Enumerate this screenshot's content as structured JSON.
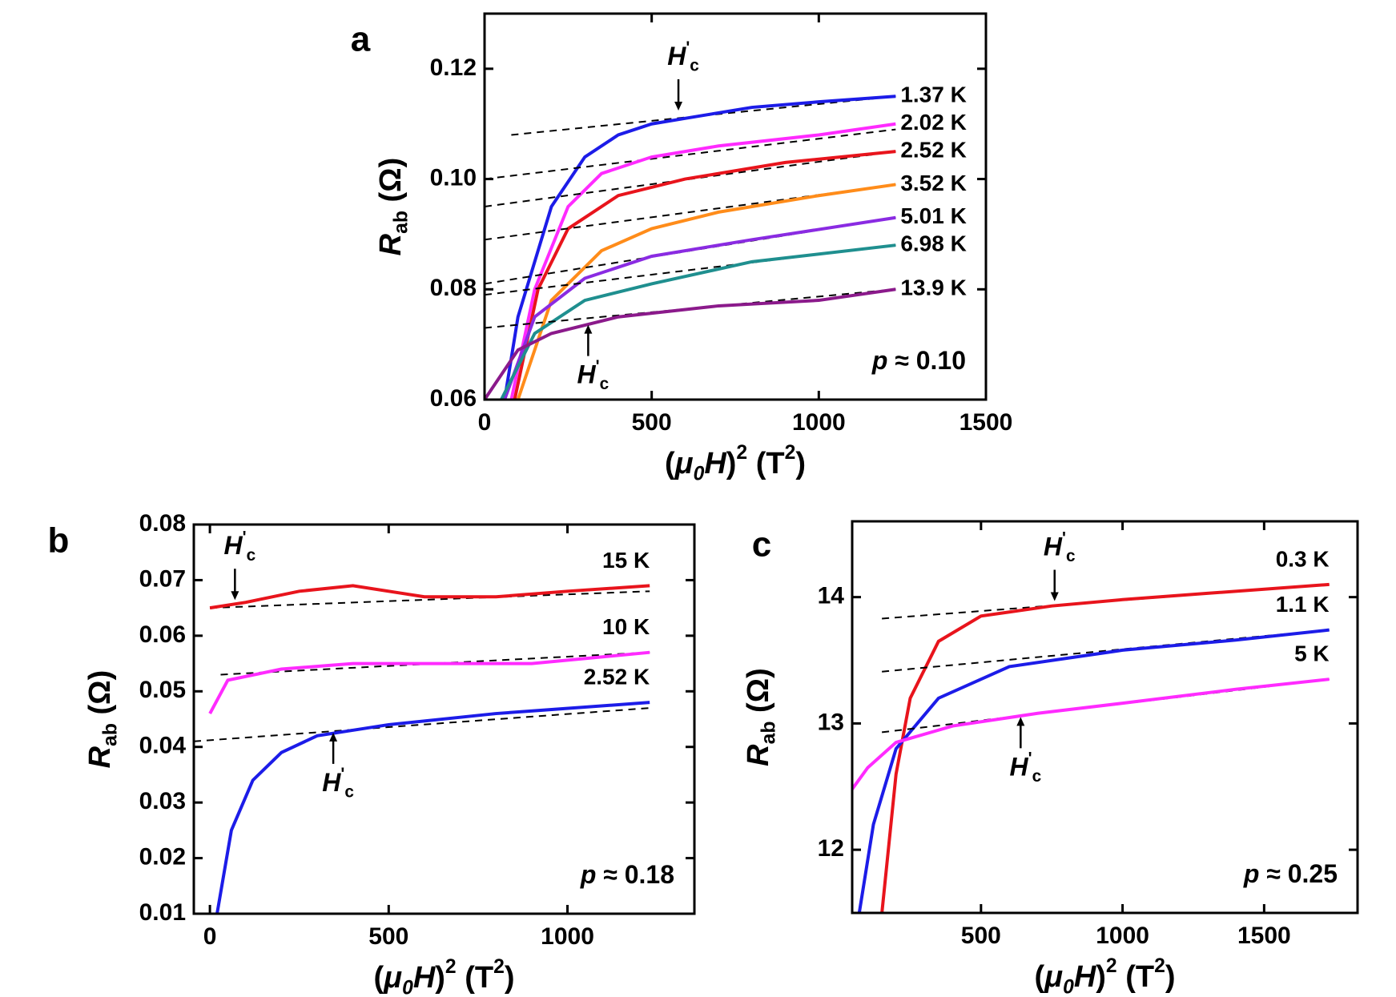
{
  "chart_data": [
    {
      "type": "line",
      "panel": "a",
      "xlim": [
        0,
        1500
      ],
      "ylim": [
        0.06,
        0.13
      ],
      "xticks": [
        0,
        500,
        1000,
        1500
      ],
      "yticks": [
        0.06,
        0.08,
        {
          "value": 0.1,
          "label": "0.10"
        },
        0.12
      ],
      "xlabel": [
        {
          "text": "("
        },
        {
          "text": "μ",
          "style": "italic"
        },
        {
          "text": "0",
          "style": "sub-italic"
        },
        {
          "text": "H",
          "style": "italic"
        },
        {
          "text": ")"
        },
        {
          "text": "2",
          "style": "sup"
        },
        {
          "text": " (T"
        },
        {
          "text": "2",
          "style": "sup"
        },
        {
          "text": ")"
        }
      ],
      "ylabel": [
        {
          "text": "R",
          "style": "italic"
        },
        {
          "text": "ab",
          "style": "sub"
        },
        {
          "text": " (Ω)"
        }
      ],
      "label_position": "right",
      "note": [
        {
          "text": "p",
          "style": "italic"
        },
        {
          "text": " ≈ 0.10"
        }
      ],
      "series": [
        {
          "name": "1.37 K",
          "color": "#1c1ce8",
          "x": [
            60,
            100,
            200,
            300,
            400,
            500,
            600,
            800,
            1000,
            1230
          ],
          "values": [
            0.06,
            0.075,
            0.095,
            0.104,
            0.108,
            0.11,
            0.111,
            0.113,
            0.114,
            0.115
          ],
          "fit": {
            "x": [
              80,
              1230
            ],
            "values": [
              0.108,
              0.115
            ]
          }
        },
        {
          "name": "2.02 K",
          "color": "#ff2bff",
          "x": [
            80,
            150,
            250,
            350,
            500,
            700,
            1000,
            1230
          ],
          "values": [
            0.06,
            0.08,
            0.095,
            0.101,
            0.104,
            0.106,
            0.108,
            0.11
          ],
          "fit": {
            "x": [
              0,
              1230
            ],
            "values": [
              0.1,
              0.109
            ]
          }
        },
        {
          "name": "2.52 K",
          "color": "#e8141c",
          "x": [
            90,
            160,
            250,
            400,
            600,
            900,
            1230
          ],
          "values": [
            0.06,
            0.08,
            0.091,
            0.097,
            0.1,
            0.103,
            0.105
          ],
          "fit": {
            "x": [
              0,
              1230
            ],
            "values": [
              0.095,
              0.105
            ]
          }
        },
        {
          "name": "3.52 K",
          "color": "#ff8c1a",
          "x": [
            100,
            200,
            350,
            500,
            700,
            1000,
            1230
          ],
          "values": [
            0.06,
            0.078,
            0.087,
            0.091,
            0.094,
            0.097,
            0.099
          ],
          "fit": {
            "x": [
              0,
              1230
            ],
            "values": [
              0.089,
              0.099
            ]
          }
        },
        {
          "name": "5.01 K",
          "color": "#8a2be2",
          "x": [
            60,
            150,
            300,
            500,
            800,
            1230
          ],
          "values": [
            0.06,
            0.075,
            0.082,
            0.086,
            0.089,
            0.093
          ],
          "fit": {
            "x": [
              0,
              1230
            ],
            "values": [
              0.081,
              0.093
            ]
          }
        },
        {
          "name": "6.98 K",
          "color": "#1f8f8f",
          "x": [
            50,
            150,
            300,
            500,
            800,
            1230
          ],
          "values": [
            0.06,
            0.072,
            0.078,
            0.081,
            0.085,
            0.088
          ],
          "fit": {
            "x": [
              0,
              1230
            ],
            "values": [
              0.079,
              0.088
            ]
          }
        },
        {
          "name": "13.9 K",
          "color": "#8b1a8b",
          "x": [
            0,
            100,
            200,
            400,
            700,
            1000,
            1230
          ],
          "values": [
            0.06,
            0.069,
            0.072,
            0.075,
            0.077,
            0.078,
            0.08
          ],
          "fit": {
            "x": [
              0,
              1230
            ],
            "values": [
              0.073,
              0.08
            ]
          }
        }
      ],
      "annotations": [
        {
          "parts": [
            {
              "text": "H",
              "style": "italic"
            },
            {
              "text": "'",
              "style": "sup"
            },
            {
              "text": "c",
              "style": "sub"
            }
          ],
          "x": 580,
          "y": 0.112,
          "direction": "down"
        },
        {
          "parts": [
            {
              "text": "H",
              "style": "italic"
            },
            {
              "text": "'",
              "style": "sup"
            },
            {
              "text": "c",
              "style": "sub"
            }
          ],
          "x": 310,
          "y": 0.074,
          "direction": "up"
        }
      ]
    },
    {
      "type": "line",
      "panel": "b",
      "xlim": [
        -45,
        1355
      ],
      "ylim": [
        0.01,
        0.08
      ],
      "xticks": [
        0,
        500,
        1000
      ],
      "yticks": [
        0.01,
        0.02,
        0.03,
        0.04,
        0.05,
        0.06,
        0.07,
        0.08
      ],
      "xlabel": [
        {
          "text": "("
        },
        {
          "text": "μ",
          "style": "italic"
        },
        {
          "text": "0",
          "style": "sub-italic"
        },
        {
          "text": "H",
          "style": "italic"
        },
        {
          "text": ")"
        },
        {
          "text": "2",
          "style": "sup"
        },
        {
          "text": " (T"
        },
        {
          "text": "2",
          "style": "sup"
        },
        {
          "text": ")"
        }
      ],
      "ylabel": [
        {
          "text": "R",
          "style": "italic"
        },
        {
          "text": "ab",
          "style": "sub"
        },
        {
          "text": " (Ω)"
        }
      ],
      "label_position": "above",
      "note": [
        {
          "text": "p",
          "style": "italic"
        },
        {
          "text": " ≈ 0.18"
        }
      ],
      "series": [
        {
          "name": "15 K",
          "color": "#e8141c",
          "x": [
            0,
            100,
            250,
            400,
            600,
            800,
            1000,
            1230
          ],
          "values": [
            0.065,
            0.066,
            0.068,
            0.069,
            0.067,
            0.067,
            0.068,
            0.069
          ],
          "fit": {
            "x": [
              0,
              1230
            ],
            "values": [
              0.065,
              0.068
            ]
          }
        },
        {
          "name": "10 K",
          "color": "#ff2bff",
          "x": [
            0,
            50,
            200,
            400,
            600,
            900,
            1230
          ],
          "values": [
            0.046,
            0.052,
            0.054,
            0.055,
            0.055,
            0.055,
            0.057
          ],
          "fit": {
            "x": [
              30,
              1230
            ],
            "values": [
              0.053,
              0.057
            ]
          }
        },
        {
          "name": "2.52 K",
          "color": "#1c1ce8",
          "x": [
            20,
            60,
            120,
            200,
            300,
            500,
            800,
            1230
          ],
          "values": [
            0.01,
            0.025,
            0.034,
            0.039,
            0.042,
            0.044,
            0.046,
            0.048
          ],
          "fit": {
            "x": [
              -45,
              1230
            ],
            "values": [
              0.041,
              0.047
            ]
          }
        }
      ],
      "annotations": [
        {
          "parts": [
            {
              "text": "H",
              "style": "italic"
            },
            {
              "text": "'",
              "style": "sup"
            },
            {
              "text": "c",
              "style": "sub"
            }
          ],
          "x": 70,
          "y": 0.066,
          "direction": "down"
        },
        {
          "parts": [
            {
              "text": "H",
              "style": "italic"
            },
            {
              "text": "'",
              "style": "sup"
            },
            {
              "text": "c",
              "style": "sub"
            }
          ],
          "x": 345,
          "y": 0.043,
          "direction": "up"
        }
      ]
    },
    {
      "type": "line",
      "panel": "c",
      "xlim": [
        45,
        1830
      ],
      "ylim": [
        11.5,
        14.6
      ],
      "xticks": [
        500,
        1000,
        1500
      ],
      "yticks": [
        12,
        13,
        14
      ],
      "xlabel": [
        {
          "text": "("
        },
        {
          "text": "μ",
          "style": "italic"
        },
        {
          "text": "0",
          "style": "sub-italic"
        },
        {
          "text": "H",
          "style": "italic"
        },
        {
          "text": ")"
        },
        {
          "text": "2",
          "style": "sup"
        },
        {
          "text": " (T"
        },
        {
          "text": "2",
          "style": "sup"
        },
        {
          "text": ")"
        }
      ],
      "ylabel": [
        {
          "text": "R",
          "style": "italic"
        },
        {
          "text": "ab",
          "style": "sub"
        },
        {
          "text": " (Ω)"
        }
      ],
      "label_position": "above",
      "note": [
        {
          "text": "p",
          "style": "italic"
        },
        {
          "text": " ≈ 0.25"
        }
      ],
      "series": [
        {
          "name": "0.3 K",
          "color": "#e8141c",
          "x": [
            150,
            200,
            250,
            350,
            500,
            750,
            1000,
            1300,
            1730
          ],
          "values": [
            11.5,
            12.6,
            13.2,
            13.65,
            13.85,
            13.93,
            13.98,
            14.03,
            14.1
          ],
          "fit": {
            "x": [
              150,
              1730
            ],
            "values": [
              13.83,
              14.1
            ]
          }
        },
        {
          "name": "1.1 K",
          "color": "#1c1ce8",
          "x": [
            70,
            120,
            200,
            350,
            600,
            1000,
            1400,
            1730
          ],
          "values": [
            11.5,
            12.2,
            12.8,
            13.2,
            13.45,
            13.58,
            13.66,
            13.74
          ],
          "fit": {
            "x": [
              150,
              1730
            ],
            "values": [
              13.41,
              13.74
            ]
          }
        },
        {
          "name": "5 K",
          "color": "#ff2bff",
          "x": [
            45,
            100,
            200,
            400,
            700,
            1000,
            1400,
            1730
          ],
          "values": [
            12.48,
            12.65,
            12.85,
            12.98,
            13.08,
            13.16,
            13.27,
            13.35
          ],
          "fit": {
            "x": [
              150,
              1730
            ],
            "values": [
              12.93,
              13.35
            ]
          }
        }
      ],
      "annotations": [
        {
          "parts": [
            {
              "text": "H",
              "style": "italic"
            },
            {
              "text": "'",
              "style": "sup"
            },
            {
              "text": "c",
              "style": "sub"
            }
          ],
          "x": 760,
          "y": 13.95,
          "direction": "down"
        },
        {
          "parts": [
            {
              "text": "H",
              "style": "italic"
            },
            {
              "text": "'",
              "style": "sup"
            },
            {
              "text": "c",
              "style": "sub"
            }
          ],
          "x": 640,
          "y": 13.07,
          "direction": "up"
        }
      ]
    }
  ]
}
